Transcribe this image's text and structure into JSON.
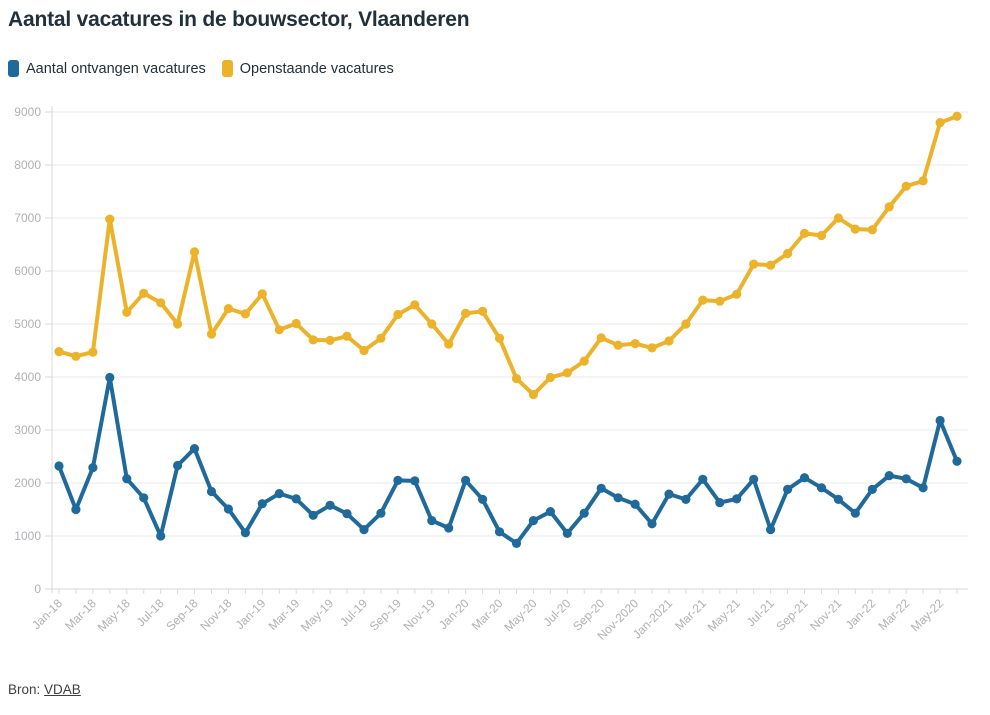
{
  "title": "Aantal vacatures in de bouwsector, Vlaanderen",
  "legend": [
    {
      "label": "Aantal ontvangen vacatures",
      "color": "#1f6a9a"
    },
    {
      "label": "Openstaande vacatures",
      "color": "#ebb22a"
    }
  ],
  "footer": {
    "prefix": "Bron: ",
    "source_label": "VDAB"
  },
  "colors": {
    "background": "#ffffff",
    "grid": "#e8e8ea",
    "axis": "#d9d9db",
    "tick_label": "#b1b1b6",
    "title_text": "#22303c",
    "blue_series": "#1f6a9a",
    "yellow_series": "#ebb22a"
  },
  "chart_data": {
    "type": "line",
    "x": [
      "Jan-18",
      "Feb-18",
      "Mar-18",
      "Apr-18",
      "May-18",
      "Jun-18",
      "Jul-18",
      "Aug-18",
      "Sep-18",
      "Oct-18",
      "Nov-18",
      "Dec-18",
      "Jan-19",
      "Feb-19",
      "Mar-19",
      "Apr-19",
      "May-19",
      "Jun-19",
      "Jul-19",
      "Aug-19",
      "Sep-19",
      "Oct-19",
      "Nov-19",
      "Dec-19",
      "Jan-20",
      "Feb-20",
      "Mar-20",
      "Apr-20",
      "May-20",
      "Jun-20",
      "Jul-20",
      "Aug-20",
      "Sep-20",
      "Oct-20",
      "Nov-20",
      "Dec-20",
      "Jan-21",
      "Feb-21",
      "Mar-21",
      "Apr-21",
      "May-21",
      "Jun-21",
      "Jul-21",
      "Aug-21",
      "Sep-21",
      "Oct-21",
      "Nov-21",
      "Dec-21",
      "Jan-22",
      "Feb-22",
      "Mar-22",
      "Apr-22",
      "May-22",
      "Jun-22"
    ],
    "x_axis_tick_labels": [
      "Jan-18",
      "Mar-18",
      "May-18",
      "Jul-18",
      "Sep-18",
      "Nov-18",
      "Jan-19",
      "Mar-19",
      "May-19",
      "Jul-19",
      "Sep-19",
      "Nov-19",
      "Jan-20",
      "Mar-20",
      "May-20",
      "Jul-20",
      "Sep-20",
      "Nov-2020",
      "Jan-2021",
      "Mar-21",
      "May-21",
      "Jul-21",
      "Sep-21",
      "Nov-21",
      "Jan-22",
      "Mar-22",
      "May-22"
    ],
    "x_tick_label_every_n_months": 2,
    "series": [
      {
        "name": "Aantal ontvangen vacatures",
        "color": "#1f6a9a",
        "values": [
          2320,
          1500,
          2290,
          3990,
          2080,
          1720,
          1000,
          2330,
          2650,
          1840,
          1510,
          1060,
          1610,
          1800,
          1700,
          1390,
          1580,
          1420,
          1120,
          1430,
          2050,
          2040,
          1290,
          1150,
          2050,
          1690,
          1080,
          860,
          1290,
          1460,
          1050,
          1430,
          1900,
          1720,
          1600,
          1230,
          1790,
          1690,
          2070,
          1630,
          1700,
          2070,
          1120,
          1880,
          2100,
          1910,
          1690,
          1430,
          1880,
          2140,
          2080,
          1910,
          3180,
          2410
        ]
      },
      {
        "name": "Openstaande vacatures",
        "color": "#ebb22a",
        "values": [
          4480,
          4390,
          4470,
          6980,
          5220,
          5580,
          5400,
          5000,
          6360,
          4810,
          5290,
          5190,
          5570,
          4890,
          5010,
          4700,
          4690,
          4770,
          4500,
          4730,
          5180,
          5360,
          5000,
          4620,
          5200,
          5240,
          4730,
          3970,
          3670,
          3990,
          4080,
          4300,
          4740,
          4600,
          4630,
          4550,
          4680,
          5000,
          5450,
          5430,
          5560,
          6130,
          6110,
          6330,
          6710,
          6670,
          7000,
          6790,
          6780,
          7210,
          7600,
          7700,
          8800,
          8920
        ]
      }
    ],
    "ylim": [
      0,
      9000
    ],
    "yticks": [
      0,
      1000,
      2000,
      3000,
      4000,
      5000,
      6000,
      7000,
      8000,
      9000
    ],
    "ylabel": "",
    "xlabel": "",
    "grid": "horizontal",
    "legend_position": "top-left",
    "markers": "circle"
  }
}
